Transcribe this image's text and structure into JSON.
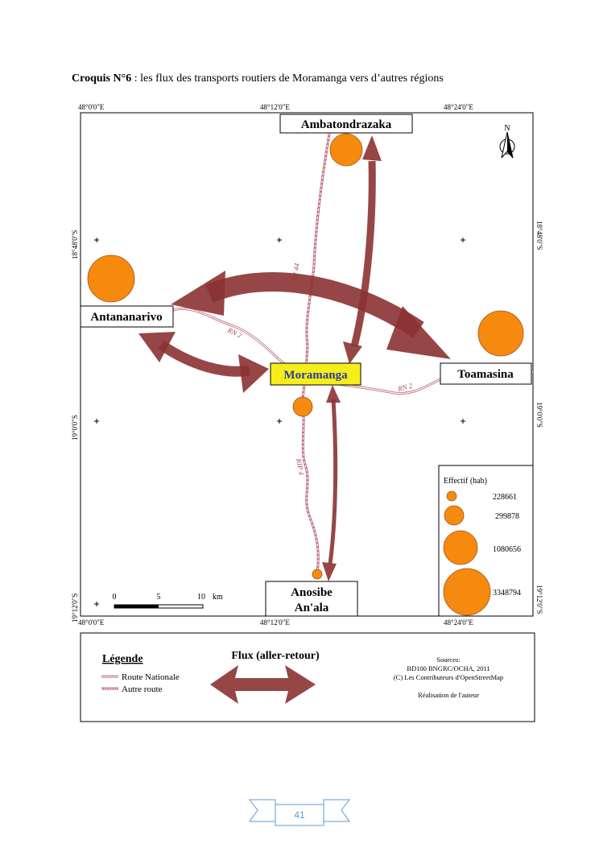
{
  "caption": {
    "prefix": "Croquis N°6",
    "text": " : les flux des transports routiers de Moramanga vers d’autres régions"
  },
  "map": {
    "lon_ticks": [
      "48°0'0\"E",
      "48°12'0\"E",
      "48°24'0\"E"
    ],
    "lat_ticks": [
      "18°48'0\"S",
      "19°0'0\"S",
      "19°12'0\"S"
    ],
    "north_label": "N",
    "cities": {
      "ambatondrazaka": "Ambatondrazaka",
      "antananarivo": "Antananarivo",
      "moramanga": "Moramanga",
      "toamasina": "Toamasina",
      "anosibe_1": "Anosibe",
      "anosibe_2": "An'ala"
    },
    "roads": {
      "rn44": "RN 44",
      "rn2_west": "RN 2",
      "rn2_east": "RN 2",
      "rip4": "RIP 4"
    },
    "scale": {
      "labels": [
        "0",
        "5",
        "10"
      ],
      "unit": "km"
    },
    "legend_circles": {
      "title": "Effectif (hab)",
      "values": [
        "228661",
        "299878",
        "1080656",
        "3348794"
      ]
    },
    "colors": {
      "circle": "#f68a0f",
      "arrow": "#8b3232",
      "highlight": "#f5ee1a",
      "road": "#c06a80"
    }
  },
  "legend": {
    "title": "Légende",
    "route_nationale": "Route Nationale",
    "autre_route": "Autre route",
    "flux_title": "Flux (aller-retour)",
    "sources": [
      "Sources:",
      "BD100 BNGRC/OCHA, 2011",
      "(C) Les Contributeurs d'OpenStreetMap"
    ],
    "author": "Réalisation de l'auteur"
  },
  "page_number": "41"
}
